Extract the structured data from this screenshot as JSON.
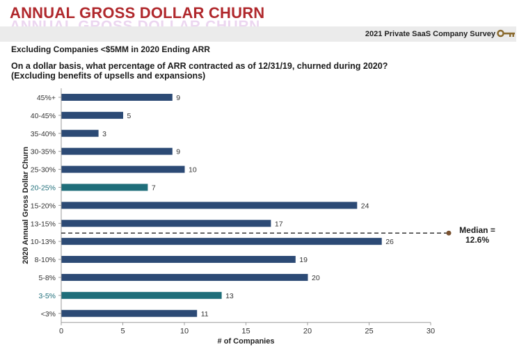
{
  "header": {
    "title": "ANNUAL GROSS DOLLAR CHURN",
    "survey": "2021 Private SaaS Company Survey",
    "subtitle": "Excluding Companies <$5MM in 2020 Ending ARR",
    "question_line1": "On a dollar basis, what percentage of ARR contracted as of 12/31/19, churned during 2020?",
    "question_line2": "(Excluding benefits of upsells and expansions)",
    "key_icon": "key-icon"
  },
  "median": {
    "line1": "Median =",
    "line2": "12.6%",
    "category": "10-13%"
  },
  "colors": {
    "title": "#b0282c",
    "bar": "#2c4a75",
    "bar_highlight": "#1f6e7a",
    "key": "#8a6a2e",
    "median_marker": "#7a5230"
  },
  "chart_data": {
    "type": "bar",
    "orientation": "horizontal",
    "categories": [
      "45%+",
      "40-45%",
      "35-40%",
      "30-35%",
      "25-30%",
      "20-25%",
      "15-20%",
      "13-15%",
      "10-13%",
      "8-10%",
      "5-8%",
      "3-5%",
      "<3%"
    ],
    "values": [
      9,
      5,
      3,
      9,
      10,
      7,
      24,
      17,
      26,
      19,
      20,
      13,
      11
    ],
    "highlighted": [
      "20-25%",
      "3-5%"
    ],
    "xlabel": "# of Companies",
    "ylabel": "2020 Annual Gross Dollar Churn",
    "xlim": [
      0,
      30
    ],
    "xticks": [
      0,
      5,
      10,
      15,
      20,
      25,
      30
    ],
    "grid": false,
    "legend": "none"
  }
}
